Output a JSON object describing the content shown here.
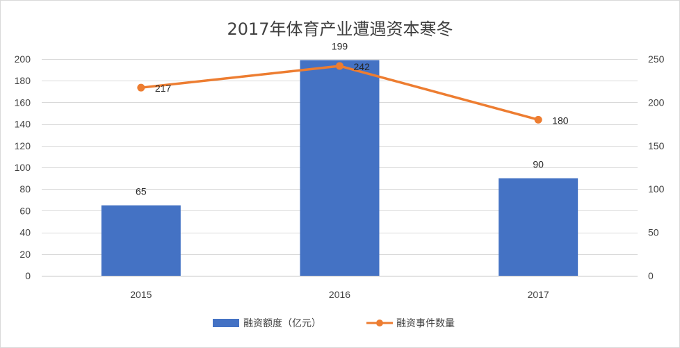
{
  "chart_data": {
    "type": "bar",
    "title": "2017年体育产业遭遇资本寒冬",
    "categories": [
      "2015",
      "2016",
      "2017"
    ],
    "series": [
      {
        "name": "融资额度（亿元）",
        "type": "bar",
        "axis": "left",
        "values": [
          65,
          199,
          90
        ],
        "color": "#4472c4"
      },
      {
        "name": "融资事件数量",
        "type": "line",
        "axis": "right",
        "values": [
          217,
          242,
          180
        ],
        "color": "#ed7d31"
      }
    ],
    "y_left": {
      "ylim": [
        0,
        200
      ],
      "ticks": [
        0,
        20,
        40,
        60,
        80,
        100,
        120,
        140,
        160,
        180,
        200
      ]
    },
    "y_right": {
      "ylim": [
        0,
        250
      ],
      "ticks": [
        0,
        50,
        100,
        150,
        200,
        250
      ]
    },
    "grid": true,
    "legend_position": "bottom"
  }
}
